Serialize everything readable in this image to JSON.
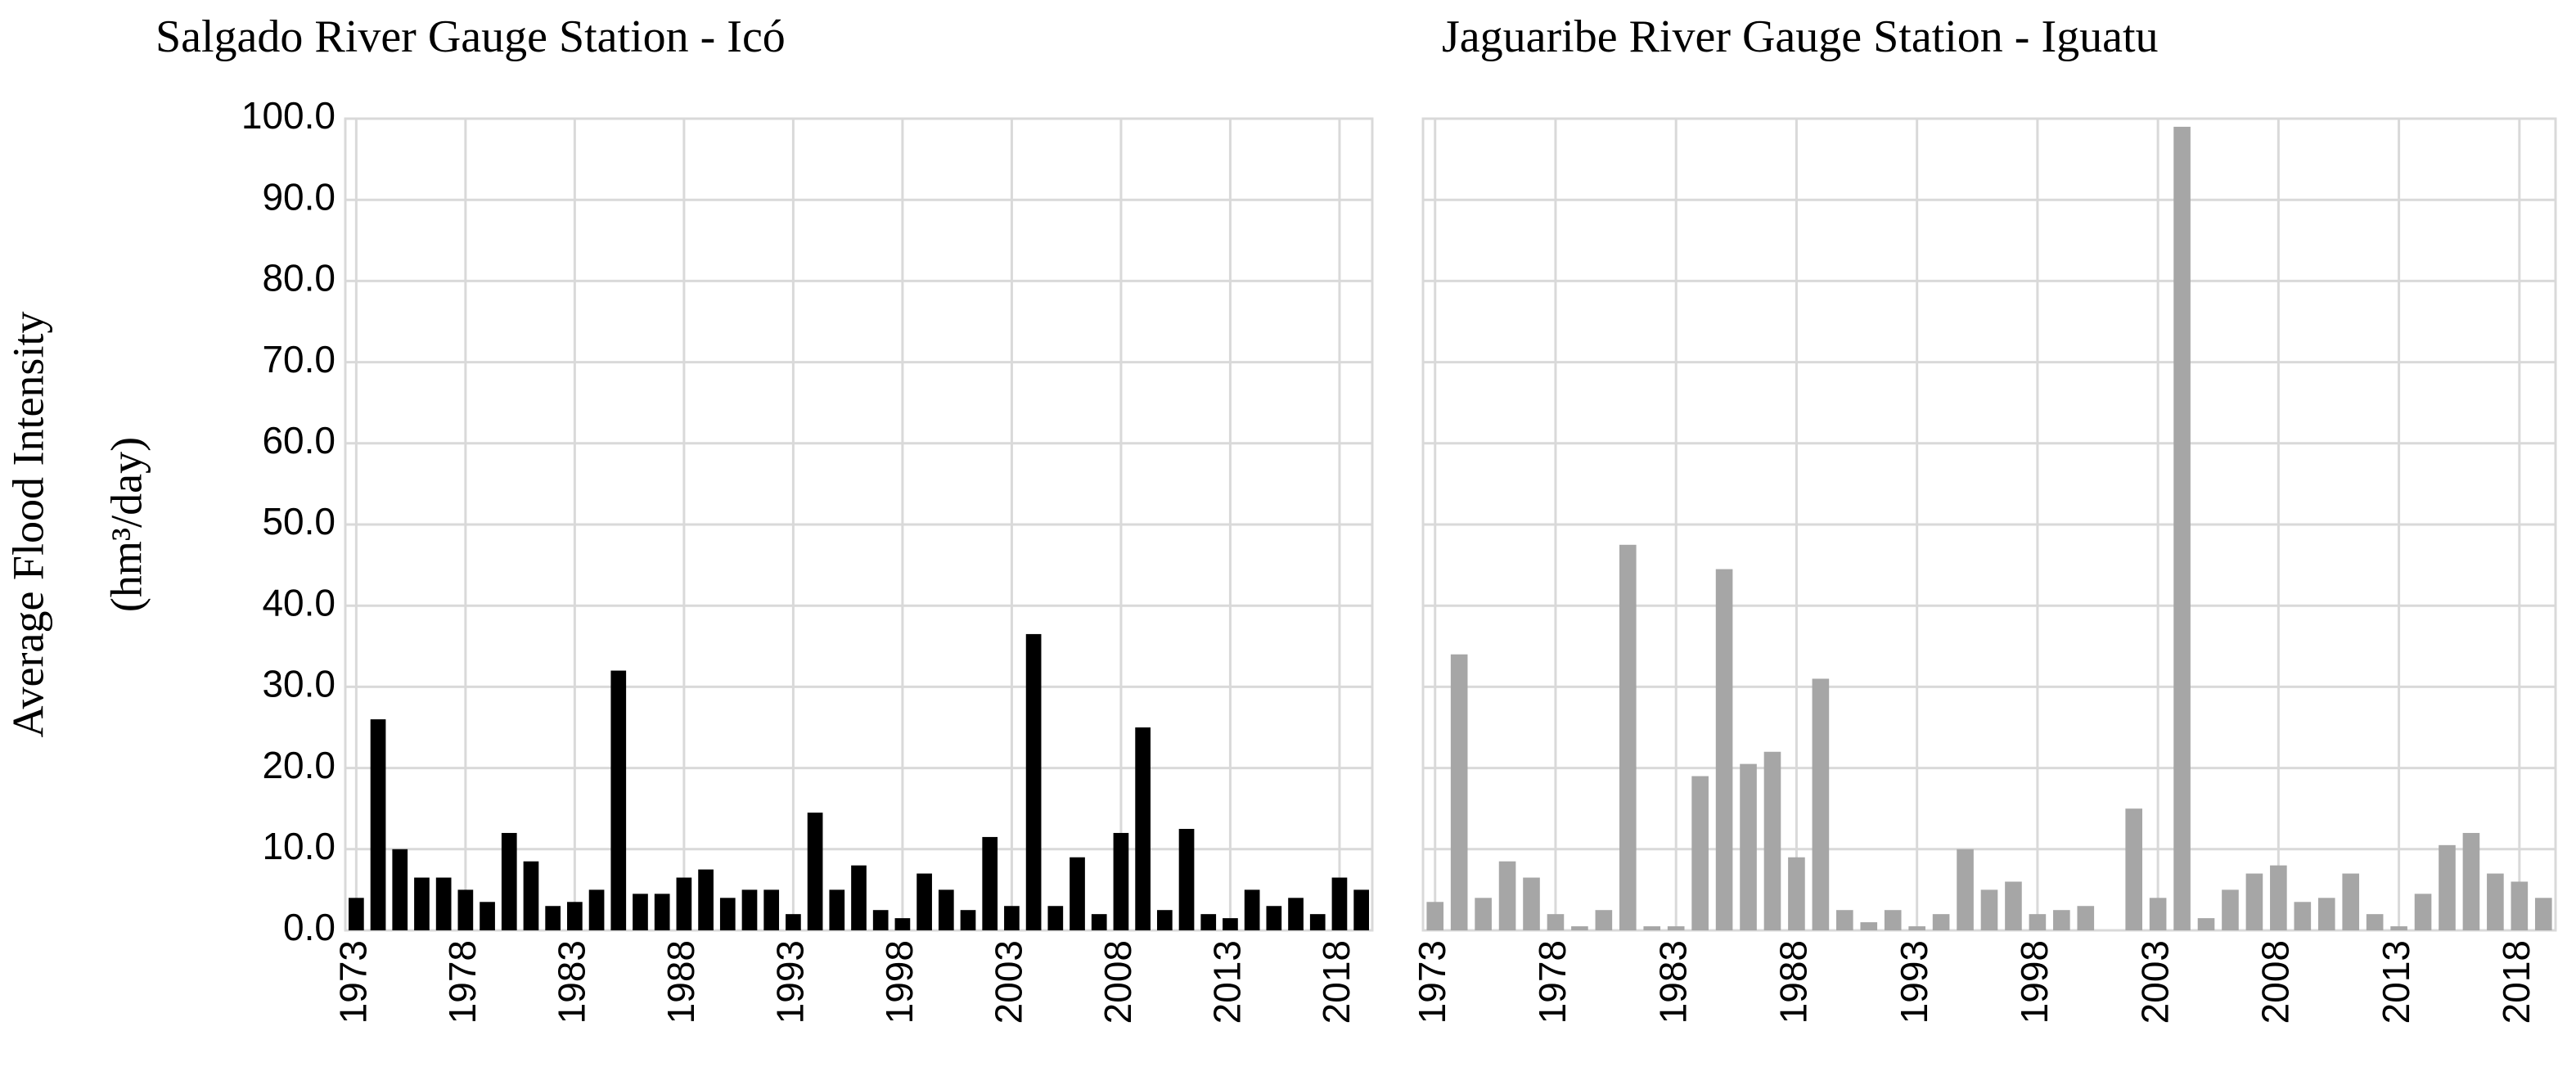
{
  "chart_data": [
    {
      "type": "bar",
      "title": "Salgado River Gauge Station - Icó",
      "y_label": [
        "Average Flood Intensity",
        "(hm³/day)"
      ],
      "categories": [
        1973,
        null,
        null,
        null,
        null,
        1978,
        null,
        null,
        null,
        null,
        1983,
        null,
        null,
        null,
        null,
        1988,
        null,
        null,
        null,
        null,
        1993,
        null,
        null,
        null,
        null,
        1998,
        null,
        null,
        null,
        null,
        2003,
        null,
        null,
        null,
        null,
        2008,
        null,
        null,
        null,
        null,
        2013,
        null,
        null,
        null,
        null,
        2018,
        null
      ],
      "values": [
        4,
        26,
        10,
        6.5,
        6.5,
        5,
        3.5,
        12,
        8.5,
        3,
        3.5,
        5,
        32,
        4.5,
        4.5,
        6.5,
        7.5,
        4,
        5,
        5,
        2,
        14.5,
        5,
        8,
        2.5,
        1.5,
        7,
        5,
        2.5,
        11.5,
        3,
        36.5,
        3,
        9,
        2,
        12,
        25,
        2.5,
        12.5,
        2,
        1.5,
        5,
        3,
        4,
        2,
        6.5,
        5
      ],
      "color": "#000000",
      "ylim": [
        0,
        100
      ],
      "yticks": [
        {
          "value": 0,
          "label": "0.0"
        },
        {
          "value": 10,
          "label": "10.0"
        },
        {
          "value": 20,
          "label": "20.0"
        },
        {
          "value": 30,
          "label": "30.0"
        },
        {
          "value": 40,
          "label": "40.0"
        },
        {
          "value": 50,
          "label": "50.0"
        },
        {
          "value": 60,
          "label": "60.0"
        },
        {
          "value": 70,
          "label": "70.0"
        },
        {
          "value": 80,
          "label": "80.0"
        },
        {
          "value": 90,
          "label": "90.0"
        },
        {
          "value": 100,
          "label": "100.0"
        }
      ],
      "grid": true
    },
    {
      "type": "bar",
      "title": "Jaguaribe River Gauge Station - Iguatu",
      "categories": [
        1973,
        null,
        null,
        null,
        null,
        1978,
        null,
        null,
        null,
        null,
        1983,
        null,
        null,
        null,
        null,
        1988,
        null,
        null,
        null,
        null,
        1993,
        null,
        null,
        null,
        null,
        1998,
        null,
        null,
        null,
        null,
        2003,
        null,
        null,
        null,
        null,
        2008,
        null,
        null,
        null,
        null,
        2013,
        null,
        null,
        null,
        null,
        2018,
        null
      ],
      "values": [
        3.5,
        34,
        4,
        8.5,
        6.5,
        2,
        0.5,
        2.5,
        47.5,
        0.5,
        0.5,
        19,
        44.5,
        20.5,
        22,
        9,
        31,
        2.5,
        1,
        2.5,
        0.5,
        2,
        10,
        5,
        6,
        2,
        2.5,
        3,
        0,
        15,
        4,
        99,
        1.5,
        5,
        7,
        8,
        3.5,
        4,
        7,
        2,
        0.5,
        4.5,
        10.5,
        12,
        7,
        6,
        4
      ],
      "color": "#a6a6a6",
      "ylim": [
        0,
        100
      ],
      "yticks": [
        0,
        10,
        20,
        30,
        40,
        50,
        60,
        70,
        80,
        90,
        100
      ],
      "grid": true
    }
  ]
}
